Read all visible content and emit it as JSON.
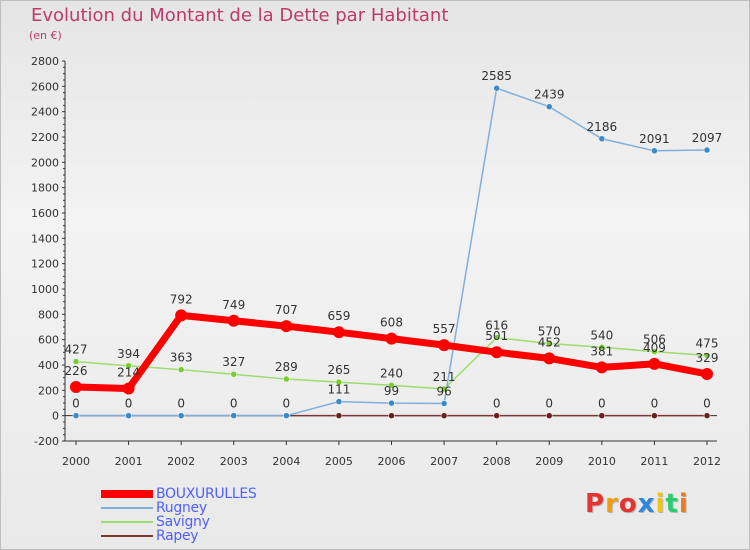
{
  "title": "Evolution du Montant de la Dette par Habitant",
  "subtitle": "(en €)",
  "logo": {
    "text": "Proxiti",
    "colors": [
      "#e3342f",
      "#f39c12",
      "#e3342f",
      "#2e86de",
      "#f1c40f",
      "#2ecc71",
      "#e67e22"
    ]
  },
  "chart_data": {
    "type": "line",
    "x": [
      "2000",
      "2001",
      "2002",
      "2003",
      "2004",
      "2005",
      "2006",
      "2007",
      "2008",
      "2009",
      "2010",
      "2011",
      "2012"
    ],
    "ylim": [
      -200,
      2800
    ],
    "yticks": [
      -200,
      0,
      200,
      400,
      600,
      800,
      1000,
      1200,
      1400,
      1600,
      1800,
      2000,
      2200,
      2400,
      2600,
      2800
    ],
    "grid": false,
    "legend_position": "bottom-left",
    "series": [
      {
        "name": "Rapey",
        "color": "#7a3535",
        "marker": "#6b2020",
        "values": [
          0,
          0,
          0,
          0,
          0,
          0,
          0,
          0,
          0,
          0,
          0,
          0,
          0
        ],
        "labels": [
          "0",
          "0",
          "0",
          "0",
          "0",
          "",
          "",
          "",
          "0",
          "0",
          "0",
          "0",
          "0"
        ]
      },
      {
        "name": "Savigny",
        "color": "#9bdd6e",
        "marker": "#7acc30",
        "values": [
          427,
          394,
          363,
          327,
          289,
          265,
          240,
          211,
          616,
          570,
          540,
          506,
          475
        ],
        "labels": [
          "427",
          "394",
          "363",
          "327",
          "289",
          "265",
          "240",
          "211",
          "616",
          "570",
          "540",
          "506",
          "475"
        ]
      },
      {
        "name": "Rugney",
        "color": "#7fb0dd",
        "marker": "#3a8ac9",
        "values": [
          0,
          0,
          0,
          0,
          0,
          111,
          99,
          96,
          2585,
          2439,
          2186,
          2091,
          2097
        ],
        "labels": [
          "",
          "",
          "",
          "",
          "",
          "111",
          "99",
          "96",
          "2585",
          "2439",
          "2186",
          "2091",
          "2097"
        ]
      },
      {
        "name": "BOUXURULLES",
        "color": "#ff0000",
        "marker": "#ff0000",
        "values": [
          226,
          214,
          792,
          749,
          707,
          659,
          608,
          557,
          501,
          452,
          381,
          409,
          329
        ],
        "labels": [
          "226",
          "214",
          "792",
          "749",
          "707",
          "659",
          "608",
          "557",
          "501",
          "452",
          "381",
          "409",
          "329"
        ]
      }
    ],
    "legend_order": [
      "BOUXURULLES",
      "Rugney",
      "Savigny",
      "Rapey"
    ]
  }
}
